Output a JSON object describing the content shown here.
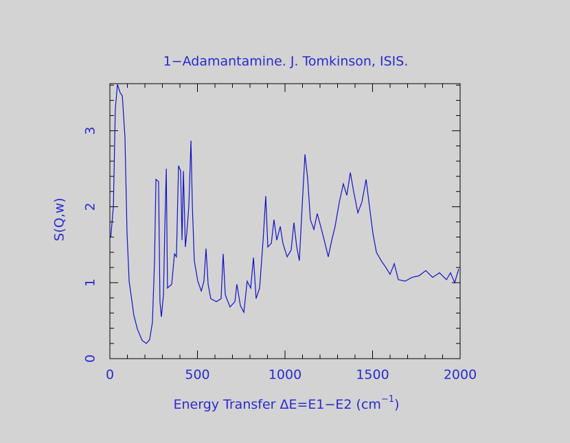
{
  "chart_data": {
    "type": "line",
    "title": "1−Adamantamine. J. Tomkinson, ISIS.",
    "xlabel": {
      "text": "Energy Transfer ΔE=E1−E2 (cm",
      "sup": "−1",
      "end": ")"
    },
    "ylabel": "S(Q,w)",
    "xlim": [
      0,
      2000
    ],
    "ylim": [
      0,
      3.62
    ],
    "xticks": [
      0,
      500,
      1000,
      1500,
      2000
    ],
    "yticks": [
      0,
      1,
      2,
      3
    ],
    "minor_ticks": 5,
    "axis_color": "#000000",
    "text_color": "#2a2ad0",
    "series": [
      {
        "name": "S(Q,w)",
        "color": "#1010c8",
        "x": [
          5,
          20,
          31,
          43,
          59,
          71,
          86,
          98,
          110,
          137,
          157,
          184,
          208,
          227,
          243,
          255,
          263,
          278,
          286,
          294,
          306,
          314,
          322,
          329,
          353,
          369,
          380,
          392,
          404,
          412,
          420,
          431,
          439,
          451,
          463,
          471,
          482,
          502,
          522,
          537,
          549,
          561,
          576,
          608,
          635,
          647,
          659,
          686,
          714,
          725,
          745,
          765,
          784,
          804,
          820,
          835,
          855,
          875,
          890,
          902,
          922,
          937,
          953,
          973,
          988,
          1012,
          1035,
          1051,
          1067,
          1082,
          1098,
          1114,
          1129,
          1145,
          1165,
          1184,
          1204,
          1224,
          1247,
          1267,
          1286,
          1310,
          1333,
          1353,
          1373,
          1392,
          1416,
          1439,
          1463,
          1482,
          1502,
          1522,
          1549,
          1576,
          1600,
          1624,
          1647,
          1686,
          1725,
          1765,
          1804,
          1843,
          1882,
          1922,
          1945,
          1969,
          1992
        ],
        "values": [
          1.6,
          2.0,
          3.28,
          3.61,
          3.5,
          3.46,
          2.92,
          1.65,
          1.02,
          0.57,
          0.39,
          0.24,
          0.2,
          0.25,
          0.48,
          1.29,
          2.36,
          2.33,
          0.75,
          0.55,
          0.84,
          1.74,
          2.5,
          0.93,
          0.98,
          1.38,
          1.34,
          2.54,
          2.47,
          1.56,
          2.47,
          1.47,
          1.65,
          2.01,
          2.87,
          2.01,
          1.29,
          1.02,
          0.89,
          1.02,
          1.45,
          0.98,
          0.79,
          0.75,
          0.79,
          1.38,
          0.84,
          0.68,
          0.75,
          0.98,
          0.7,
          0.61,
          1.02,
          0.93,
          1.33,
          0.79,
          0.93,
          1.56,
          2.14,
          1.47,
          1.52,
          1.83,
          1.56,
          1.74,
          1.52,
          1.34,
          1.43,
          1.79,
          1.47,
          1.29,
          2.01,
          2.69,
          2.38,
          1.83,
          1.7,
          1.91,
          1.74,
          1.56,
          1.34,
          1.56,
          1.74,
          2.06,
          2.3,
          2.15,
          2.45,
          2.2,
          1.92,
          2.06,
          2.36,
          2.01,
          1.65,
          1.4,
          1.29,
          1.2,
          1.11,
          1.25,
          1.04,
          1.02,
          1.07,
          1.09,
          1.16,
          1.07,
          1.13,
          1.04,
          1.13,
          1.0,
          1.18
        ]
      }
    ]
  }
}
